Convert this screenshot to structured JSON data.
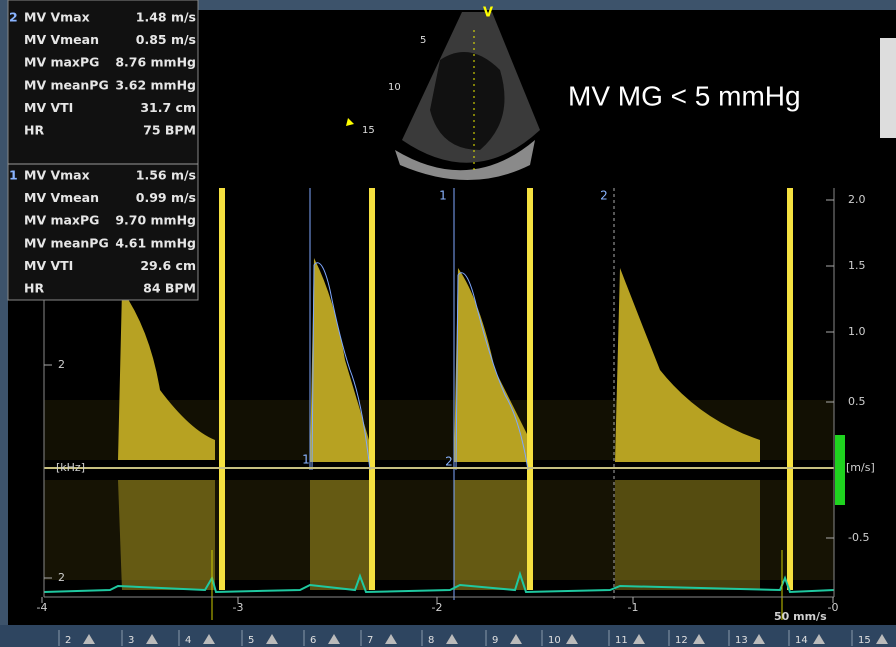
{
  "measurements": [
    {
      "index": "2",
      "rows": [
        [
          "MV Vmax",
          "1.48 m/s"
        ],
        [
          "MV Vmean",
          "0.85 m/s"
        ],
        [
          "MV maxPG",
          "8.76 mmHg"
        ],
        [
          "MV meanPG",
          "3.62 mmHg"
        ],
        [
          "MV VTI",
          "31.7 cm"
        ],
        [
          "HR",
          "75 BPM"
        ]
      ]
    },
    {
      "index": "1",
      "rows": [
        [
          "MV Vmax",
          "1.56 m/s"
        ],
        [
          "MV Vmean",
          "0.99 m/s"
        ],
        [
          "MV maxPG",
          "9.70 mmHg"
        ],
        [
          "MV meanPG",
          "4.61 mmHg"
        ],
        [
          "MV VTI",
          "29.6 cm"
        ],
        [
          "HR",
          "84 BPM"
        ]
      ]
    }
  ],
  "annotation": "MV MG < 5 mmHg",
  "sector_depths": [
    "5",
    "10",
    "15"
  ],
  "velocity_scale": {
    "ticks": [
      "2.0",
      "1.5",
      "1.0",
      "0.5",
      "-0.5"
    ],
    "unit": "[m/s]"
  },
  "frequency_scale": {
    "ticks": [
      "2",
      "2"
    ],
    "unit": "[kHz]"
  },
  "time_scale": {
    "ticks": [
      "-4",
      "-3",
      "-2",
      "-1",
      "-0"
    ]
  },
  "sweep_speed": "50 mm/s",
  "trace_markers": [
    "1",
    "2",
    "1",
    "2"
  ],
  "thumbnails": [
    "2",
    "3",
    "4",
    "5",
    "6",
    "7",
    "8",
    "9",
    "10",
    "11",
    "12",
    "13",
    "14",
    "15"
  ]
}
